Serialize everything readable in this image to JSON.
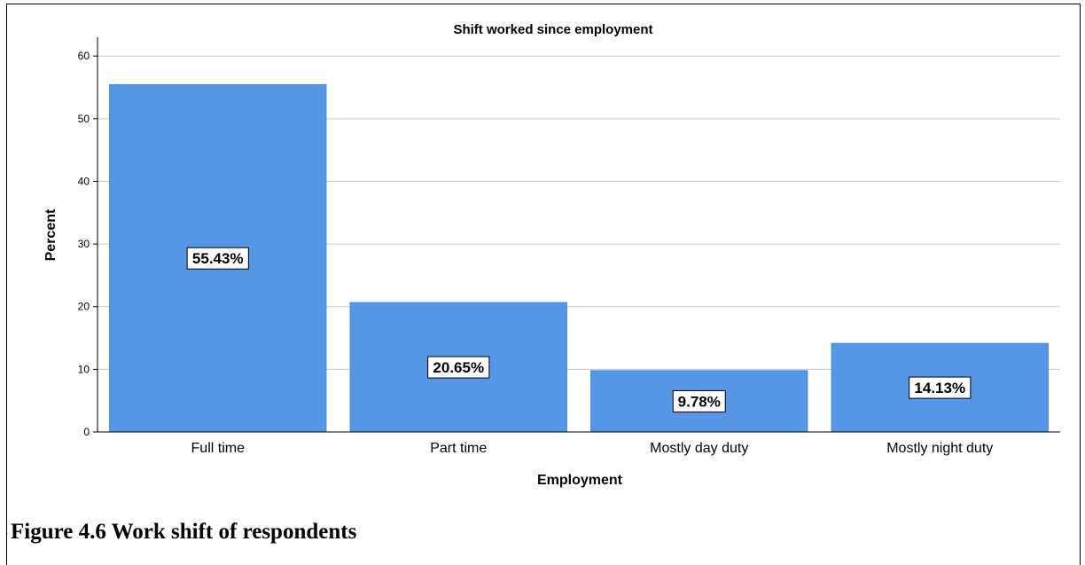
{
  "chart_data": {
    "type": "bar",
    "title": "Shift worked since employment",
    "xlabel": "Employment",
    "ylabel": "Percent",
    "categories": [
      "Full time",
      "Part time",
      "Mostly day duty",
      "Mostly night duty"
    ],
    "values": [
      55.43,
      20.65,
      9.78,
      14.13
    ],
    "data_labels": [
      "55.43%",
      "20.65%",
      "9.78%",
      "14.13%"
    ],
    "ylim": [
      0,
      63
    ],
    "yticks": [
      0,
      10,
      20,
      30,
      40,
      50,
      60
    ],
    "grid": true,
    "bar_color": "#5596e6"
  },
  "caption": "Figure 4.6 Work shift of respondents"
}
